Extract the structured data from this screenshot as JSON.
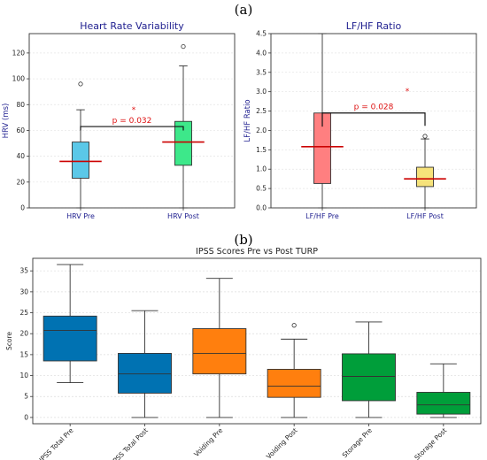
{
  "panels": {
    "a": "(a)",
    "b": "(b)"
  },
  "chart_data": [
    {
      "type": "box",
      "title": "Heart Rate Variability",
      "ylabel": "HRV (ms)",
      "ylim": [
        0,
        135
      ],
      "yticks": [
        0,
        20,
        40,
        60,
        80,
        100,
        120
      ],
      "grid": true,
      "categories": [
        "HRV Pre",
        "HRV Post"
      ],
      "boxes": [
        {
          "label": "HRV Pre",
          "whisker_low": 0,
          "q1": 23,
          "median": 36,
          "q3": 51,
          "whisker_high": 76,
          "outliers": [
            96
          ],
          "color": "#5bc8e8"
        },
        {
          "label": "HRV Post",
          "whisker_low": 0,
          "q1": 33,
          "median": 51,
          "q3": 67,
          "whisker_high": 110,
          "outliers": [
            125
          ],
          "color": "#3de88a"
        }
      ],
      "significance": {
        "text": "p = 0.032",
        "marker": "*"
      },
      "median_color": "#cc0000"
    },
    {
      "type": "box",
      "title": "LF/HF Ratio",
      "ylabel": "LF/HF Ratio",
      "ylim": [
        0,
        4.5
      ],
      "yticks": [
        0.0,
        0.5,
        1.0,
        1.5,
        2.0,
        2.5,
        3.0,
        3.5,
        4.0,
        4.5
      ],
      "grid": true,
      "categories": [
        "LF/HF Pre",
        "LF/HF Post"
      ],
      "boxes": [
        {
          "label": "LF/HF Pre",
          "whisker_low": 0,
          "q1": 0.63,
          "median": 1.58,
          "q3": 2.45,
          "whisker_high": 4.5,
          "outliers": [],
          "color": "#ff7f80"
        },
        {
          "label": "LF/HF Post",
          "whisker_low": 0,
          "q1": 0.55,
          "median": 0.75,
          "q3": 1.05,
          "whisker_high": 1.78,
          "outliers": [
            1.85
          ],
          "color": "#f6e27a"
        }
      ],
      "significance": {
        "text": "p = 0.028",
        "marker": "*"
      },
      "median_color": "#cc0000"
    },
    {
      "type": "box",
      "title": "IPSS Scores Pre vs Post TURP",
      "ylabel": "Score",
      "ylim": [
        -1.5,
        38
      ],
      "yticks": [
        0,
        5,
        10,
        15,
        20,
        25,
        30,
        35
      ],
      "grid": true,
      "categories": [
        "IPSS Total Pre",
        "IPSS Total Post",
        "Voiding Pre",
        "Voiding Post",
        "Storage Pre",
        "Storage Post"
      ],
      "boxes": [
        {
          "label": "IPSS Total Pre",
          "whisker_low": 8.3,
          "q1": 13.5,
          "median": 20.8,
          "q3": 24.2,
          "whisker_high": 36.5,
          "outliers": [],
          "color": "#0072b2"
        },
        {
          "label": "IPSS Total Post",
          "whisker_low": 0,
          "q1": 5.8,
          "median": 10.4,
          "q3": 15.3,
          "whisker_high": 25.5,
          "outliers": [],
          "color": "#0072b2"
        },
        {
          "label": "Voiding Pre",
          "whisker_low": 0,
          "q1": 10.4,
          "median": 15.3,
          "q3": 21.2,
          "whisker_high": 33.2,
          "outliers": [],
          "color": "#ff7f0e"
        },
        {
          "label": "Voiding Post",
          "whisker_low": 0,
          "q1": 4.8,
          "median": 7.5,
          "q3": 11.5,
          "whisker_high": 18.7,
          "outliers": [
            22
          ],
          "color": "#ff7f0e"
        },
        {
          "label": "Storage Pre",
          "whisker_low": 0,
          "q1": 4.0,
          "median": 9.8,
          "q3": 15.2,
          "whisker_high": 22.8,
          "outliers": [],
          "color": "#009e3a"
        },
        {
          "label": "Storage Post",
          "whisker_low": 0,
          "q1": 0.8,
          "median": 3.0,
          "q3": 6.0,
          "whisker_high": 12.8,
          "outliers": [],
          "color": "#009e3a"
        }
      ],
      "median_color": "#333333"
    }
  ]
}
